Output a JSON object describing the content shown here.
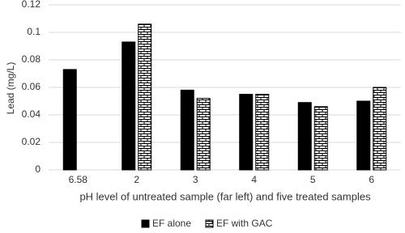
{
  "chart_data": {
    "type": "bar",
    "x_label": "pH level of untreated sample (far left) and five treated samples",
    "y_label": "Lead (mg/L)",
    "categories": [
      "6.58",
      "2",
      "3",
      "4",
      "5",
      "6"
    ],
    "series": [
      {
        "name": "EF alone",
        "color": "#000000",
        "values": [
          0.073,
          0.093,
          0.058,
          0.055,
          0.049,
          0.05
        ]
      },
      {
        "name": "EF with GAC",
        "color": "#ffffff",
        "pattern": "brick",
        "values": [
          null,
          0.106,
          0.052,
          0.055,
          0.046,
          0.06
        ]
      }
    ],
    "ylim": [
      0,
      0.12
    ],
    "yticks": [
      0,
      0.02,
      0.04,
      0.06,
      0.08,
      0.1,
      0.12
    ],
    "grid": true,
    "legend": "bottom"
  }
}
